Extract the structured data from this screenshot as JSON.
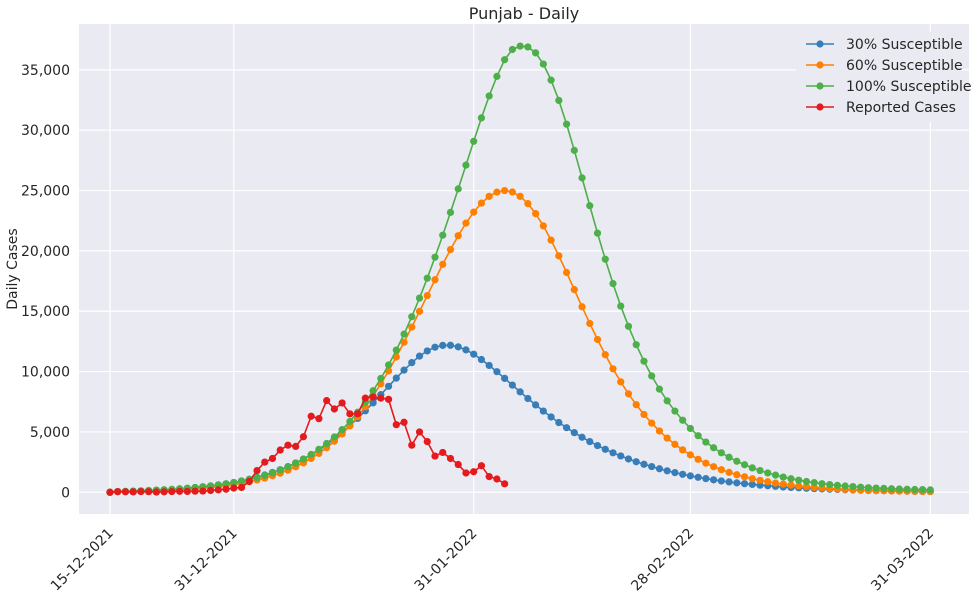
{
  "chart_data": {
    "type": "line",
    "title": "Punjab - Daily",
    "xlabel": "",
    "ylabel": "Daily Cases",
    "x_tick_labels": [
      "15-12-2021",
      "31-12-2021",
      "31-01-2022",
      "28-02-2022",
      "31-03-2022"
    ],
    "y_tick_labels": [
      "0",
      "5,000",
      "10,000",
      "15,000",
      "20,000",
      "25,000",
      "30,000",
      "35,000"
    ],
    "x_range": [
      "2021-12-11",
      "2022-04-05"
    ],
    "ylim": [
      -1800,
      38800
    ],
    "grid": true,
    "legend_position": "top-right",
    "series": [
      {
        "name": "30% Susceptible",
        "color": "#377eb8",
        "start_date": "2021-12-15",
        "end_date": "2022-03-31",
        "values": [
          0,
          60,
          70,
          90,
          110,
          130,
          160,
          190,
          230,
          270,
          320,
          380,
          440,
          510,
          600,
          700,
          810,
          940,
          1080,
          1240,
          1430,
          1640,
          1870,
          2130,
          2430,
          2750,
          3110,
          3510,
          3950,
          4430,
          4960,
          5520,
          6120,
          6750,
          7410,
          8090,
          8780,
          9460,
          10120,
          10740,
          11280,
          11710,
          12020,
          12170,
          12180,
          12050,
          11800,
          11440,
          11000,
          10510,
          9990,
          9440,
          8880,
          8320,
          7770,
          7240,
          6730,
          6240,
          5780,
          5350,
          4940,
          4560,
          4200,
          3870,
          3560,
          3270,
          3010,
          2760,
          2530,
          2320,
          2130,
          1950,
          1780,
          1630,
          1490,
          1360,
          1240,
          1130,
          1030,
          940,
          860,
          780,
          710,
          650,
          590,
          540,
          490,
          440,
          400,
          370,
          330,
          300,
          280,
          250,
          230,
          210,
          190,
          170,
          150,
          140,
          130,
          110,
          100,
          90,
          80,
          70,
          60
        ]
      },
      {
        "name": "60% Susceptible",
        "color": "#ff7f00",
        "start_date": "2021-12-15",
        "end_date": "2022-03-31",
        "values": [
          0,
          50,
          60,
          70,
          80,
          100,
          120,
          140,
          170,
          200,
          240,
          290,
          340,
          400,
          470,
          550,
          650,
          760,
          880,
          1020,
          1180,
          1370,
          1580,
          1830,
          2110,
          2430,
          2800,
          3220,
          3690,
          4230,
          4830,
          5500,
          6250,
          7080,
          7990,
          8990,
          10060,
          11210,
          12430,
          13690,
          14990,
          16300,
          17610,
          18890,
          20110,
          21260,
          22300,
          23210,
          23960,
          24520,
          24870,
          25000,
          24880,
          24520,
          23920,
          23090,
          22070,
          20890,
          19590,
          18210,
          16790,
          15370,
          13990,
          12660,
          11400,
          10230,
          9150,
          8160,
          7260,
          6450,
          5730,
          5080,
          4490,
          3970,
          3510,
          3100,
          2730,
          2410,
          2120,
          1870,
          1650,
          1450,
          1280,
          1120,
          990,
          870,
          760,
          670,
          590,
          520,
          460,
          400,
          350,
          310,
          270,
          240,
          210,
          180,
          160,
          140,
          130,
          110,
          100,
          90,
          80,
          70,
          60
        ]
      },
      {
        "name": "100% Susceptible",
        "color": "#4daf4a",
        "start_date": "2021-12-15",
        "end_date": "2022-03-31",
        "values": [
          0,
          70,
          80,
          100,
          120,
          150,
          180,
          210,
          250,
          290,
          340,
          400,
          460,
          530,
          610,
          700,
          800,
          920,
          1060,
          1220,
          1400,
          1610,
          1840,
          2110,
          2410,
          2750,
          3130,
          3560,
          4040,
          4580,
          5190,
          5870,
          6630,
          7480,
          8410,
          9430,
          10550,
          11780,
          13110,
          14550,
          16090,
          17740,
          19480,
          21300,
          23190,
          25140,
          27110,
          29080,
          31020,
          32840,
          34460,
          35840,
          36690,
          36970,
          36900,
          36410,
          35480,
          34150,
          32470,
          30500,
          28330,
          26050,
          23740,
          21470,
          19310,
          17290,
          15430,
          13750,
          12230,
          10860,
          9640,
          8550,
          7580,
          6730,
          5970,
          5290,
          4690,
          4160,
          3690,
          3270,
          2900,
          2570,
          2280,
          2020,
          1800,
          1600,
          1420,
          1260,
          1120,
          1000,
          890,
          800,
          710,
          640,
          570,
          520,
          470,
          420,
          380,
          350,
          320,
          290,
          270,
          250,
          230,
          220,
          200
        ]
      },
      {
        "name": "Reported Cases",
        "color": "#e41a1c",
        "start_date": "2021-12-15",
        "end_date": "2022-02-07",
        "values": [
          0,
          50,
          40,
          30,
          60,
          50,
          20,
          40,
          60,
          80,
          70,
          90,
          100,
          150,
          200,
          250,
          350,
          400,
          900,
          1800,
          2500,
          2800,
          3500,
          3900,
          3800,
          4600,
          6300,
          6100,
          7600,
          6900,
          7400,
          6500,
          6500,
          7800,
          7900,
          7800,
          7700,
          5600,
          5800,
          3900,
          5000,
          4200,
          3000,
          3300,
          2800,
          2300,
          1600,
          1700,
          2200,
          1300,
          1100,
          700
        ]
      }
    ]
  }
}
